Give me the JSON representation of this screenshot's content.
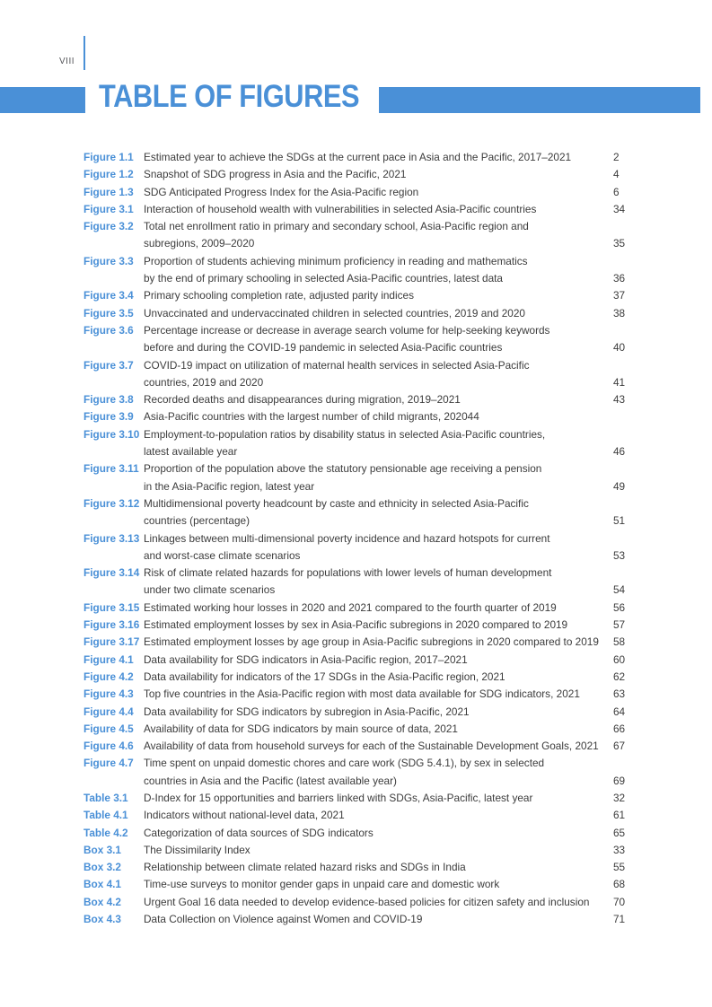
{
  "page": {
    "number_label": "VIII"
  },
  "header": {
    "title": "TABLE OF FIGURES"
  },
  "colors": {
    "accent": "#4A90D7",
    "text": "#3C3C3C",
    "page_marker_gray": "#56575B"
  },
  "entries": [
    {
      "label": "Figure 1.1",
      "lines": [
        "Estimated year to achieve the SDGs at the current pace in Asia and the Pacific, 2017–2021"
      ],
      "page": "2"
    },
    {
      "label": "Figure 1.2",
      "lines": [
        "Snapshot of SDG progress in Asia and the Pacific, 2021"
      ],
      "page": "4"
    },
    {
      "label": "Figure 1.3",
      "lines": [
        "SDG Anticipated Progress Index for the Asia-Pacific region"
      ],
      "page": "6"
    },
    {
      "label": "Figure 3.1",
      "lines": [
        "Interaction of household wealth with vulnerabilities in selected Asia-Pacific countries"
      ],
      "page": "34"
    },
    {
      "label": "Figure 3.2",
      "lines": [
        "Total net enrollment ratio in primary and secondary school, Asia-Pacific region and",
        "subregions, 2009–2020"
      ],
      "page": "35"
    },
    {
      "label": "Figure 3.3",
      "lines": [
        "Proportion of students achieving minimum proficiency in reading and mathematics",
        "by the end of primary schooling in selected Asia-Pacific countries, latest data"
      ],
      "page": "36"
    },
    {
      "label": "Figure 3.4",
      "lines": [
        "Primary schooling completion rate, adjusted parity indices"
      ],
      "page": "37"
    },
    {
      "label": "Figure 3.5",
      "lines": [
        "Unvaccinated and undervaccinated children in selected countries, 2019 and 2020"
      ],
      "page": "38"
    },
    {
      "label": "Figure 3.6",
      "lines": [
        "Percentage increase or decrease in average search volume for help-seeking keywords",
        "before and during the COVID-19 pandemic in selected Asia-Pacific countries"
      ],
      "page": "40"
    },
    {
      "label": "Figure 3.7",
      "lines": [
        "COVID-19 impact on utilization of maternal health services in selected Asia-Pacific",
        "countries, 2019 and 2020"
      ],
      "page": "41"
    },
    {
      "label": "Figure 3.8",
      "lines": [
        "Recorded deaths and disappearances during migration, 2019–2021"
      ],
      "page": "43"
    },
    {
      "label": "Figure 3.9",
      "lines": [
        "Asia-Pacific countries with the largest number of child migrants, 202044"
      ],
      "page": ""
    },
    {
      "label": "Figure 3.10",
      "lines": [
        "Employment-to-population ratios by disability status in selected Asia-Pacific countries,",
        "latest available year"
      ],
      "page": "46"
    },
    {
      "label": "Figure 3.11",
      "lines": [
        "Proportion of the population above the statutory pensionable age receiving a pension",
        "in the Asia-Pacific region, latest year"
      ],
      "page": "49"
    },
    {
      "label": "Figure 3.12",
      "lines": [
        "Multidimensional poverty headcount by caste and ethnicity in selected Asia-Pacific",
        "countries (percentage)"
      ],
      "page": "51"
    },
    {
      "label": "Figure 3.13",
      "lines": [
        "Linkages between multi-dimensional poverty incidence and hazard hotspots for current",
        "and worst-case climate scenarios"
      ],
      "page": "53"
    },
    {
      "label": "Figure 3.14",
      "lines": [
        "Risk of climate related hazards for populations with lower levels of human development",
        "under two climate scenarios"
      ],
      "page": "54"
    },
    {
      "label": "Figure 3.15",
      "lines": [
        "Estimated working hour losses in 2020 and 2021 compared to the fourth quarter of 2019"
      ],
      "page": "56"
    },
    {
      "label": "Figure 3.16",
      "lines": [
        "Estimated employment losses by sex in Asia-Pacific subregions in 2020 compared to 2019"
      ],
      "page": "57"
    },
    {
      "label": "Figure 3.17",
      "lines": [
        "Estimated employment losses by age group in Asia-Pacific subregions in 2020 compared to 2019"
      ],
      "page": "58"
    },
    {
      "label": "Figure 4.1",
      "lines": [
        "Data availability for SDG indicators in Asia-Pacific region, 2017–2021"
      ],
      "page": "60"
    },
    {
      "label": "Figure 4.2",
      "lines": [
        "Data availability for indicators of the 17 SDGs in the Asia-Pacific region, 2021"
      ],
      "page": "62"
    },
    {
      "label": "Figure 4.3",
      "lines": [
        "Top five countries in the Asia-Pacific region with most data available for SDG indicators, 2021"
      ],
      "page": "63"
    },
    {
      "label": "Figure 4.4",
      "lines": [
        "Data availability for SDG indicators by subregion in Asia-Pacific, 2021"
      ],
      "page": "64"
    },
    {
      "label": "Figure 4.5",
      "lines": [
        "Availability of data for SDG indicators by main source of data, 2021"
      ],
      "page": "66"
    },
    {
      "label": "Figure 4.6",
      "lines": [
        "Availability of data from household surveys for each of the Sustainable Development Goals, 2021"
      ],
      "page": "67"
    },
    {
      "label": "Figure 4.7",
      "lines": [
        "Time spent on unpaid domestic chores and care work (SDG 5.4.1), by sex in selected",
        "countries in Asia and the Pacific (latest available year)"
      ],
      "page": "69"
    },
    {
      "label": "Table 3.1",
      "lines": [
        "D-Index for 15 opportunities and barriers linked with SDGs, Asia-Pacific, latest year"
      ],
      "page": "32"
    },
    {
      "label": "Table 4.1",
      "lines": [
        "Indicators without national-level data, 2021"
      ],
      "page": "61"
    },
    {
      "label": "Table 4.2",
      "lines": [
        "Categorization of data sources of SDG indicators"
      ],
      "page": "65"
    },
    {
      "label": "Box 3.1",
      "lines": [
        "The Dissimilarity Index"
      ],
      "page": "33"
    },
    {
      "label": "Box 3.2",
      "lines": [
        "Relationship between climate related hazard risks and SDGs in India"
      ],
      "page": "55"
    },
    {
      "label": "Box 4.1",
      "lines": [
        "Time-use surveys to monitor gender gaps in unpaid care and domestic work"
      ],
      "page": "68"
    },
    {
      "label": "Box 4.2",
      "lines": [
        "Urgent Goal 16 data needed to develop evidence-based policies for citizen safety and inclusion"
      ],
      "page": "70"
    },
    {
      "label": "Box 4.3",
      "lines": [
        "Data Collection on Violence against Women and COVID-19"
      ],
      "page": "71"
    }
  ]
}
